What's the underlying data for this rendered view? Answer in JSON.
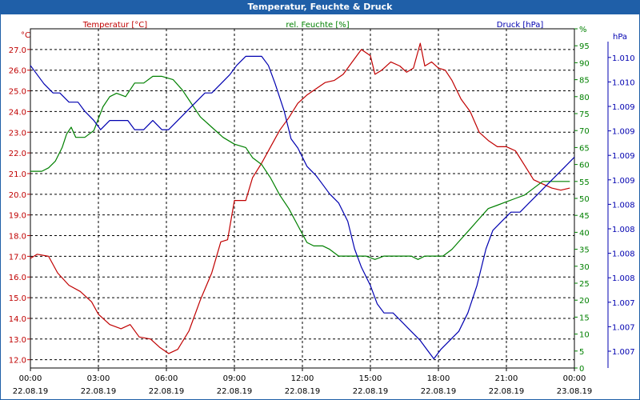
{
  "window": {
    "title": "Temperatur, Feuchte & Druck"
  },
  "colors": {
    "title_bg": "#1f5fa8",
    "temperature": "#c00000",
    "humidity": "#008000",
    "pressure": "#0000b0",
    "grid": "#000000"
  },
  "chart_data": {
    "type": "line",
    "title": "Temperatur, Feuchte & Druck",
    "grid": true,
    "x_axis": {
      "start": "2019-08-22 00:00",
      "end": "2019-08-23 00:00",
      "range_hours": [
        0,
        24
      ],
      "ticks": [
        {
          "h": 0,
          "time": "00:00",
          "date": "22.08.19"
        },
        {
          "h": 3,
          "time": "03:00",
          "date": "22.08.19"
        },
        {
          "h": 6,
          "time": "06:00",
          "date": "22.08.19"
        },
        {
          "h": 9,
          "time": "09:00",
          "date": "22.08.19"
        },
        {
          "h": 12,
          "time": "12:00",
          "date": "22.08.19"
        },
        {
          "h": 15,
          "time": "15:00",
          "date": "22.08.19"
        },
        {
          "h": 18,
          "time": "18:00",
          "date": "22.08.19"
        },
        {
          "h": 21,
          "time": "21:00",
          "date": "22.08.19"
        },
        {
          "h": 24,
          "time": "00:00",
          "date": "23.08.19"
        }
      ]
    },
    "axes": {
      "left": {
        "unit": "°C",
        "range": [
          11.6,
          28.0
        ],
        "ticks": [
          "12.0",
          "13.0",
          "14.0",
          "15.0",
          "16.0",
          "17.0",
          "18.0",
          "19.0",
          "20.0",
          "21.0",
          "22.0",
          "23.0",
          "24.0",
          "25.0",
          "26.0",
          "27.0"
        ]
      },
      "right": {
        "unit": "%",
        "range": [
          0,
          100
        ],
        "ticks": [
          "0",
          "5",
          "10",
          "15",
          "20",
          "25",
          "30",
          "35",
          "40",
          "45",
          "50",
          "55",
          "60",
          "65",
          "70",
          "75",
          "80",
          "85",
          "90",
          "95",
          "%"
        ]
      },
      "pressure": {
        "unit": "hPa",
        "range": [
          1006.8,
          1010.5
        ],
        "ticks": [
          "1.007",
          "1.007",
          "1.007",
          "1.008",
          "1.008",
          "1.008",
          "1.008",
          "1.009",
          "1.009",
          "1.009",
          "1.009",
          "1.010",
          "1.010"
        ]
      }
    },
    "legend": [
      {
        "label": "Temperatur [°C]",
        "series": "temperature"
      },
      {
        "label": "rel. Feuchte [%]",
        "series": "humidity"
      },
      {
        "label": "Druck [hPa]",
        "series": "pressure"
      }
    ],
    "series": [
      {
        "name": "Temperatur [°C]",
        "key": "temperature",
        "axis": "left",
        "points": [
          [
            0,
            16.9
          ],
          [
            0.3,
            17.1
          ],
          [
            0.8,
            17.0
          ],
          [
            1.2,
            16.2
          ],
          [
            1.7,
            15.6
          ],
          [
            2.2,
            15.3
          ],
          [
            2.7,
            14.8
          ],
          [
            3.0,
            14.2
          ],
          [
            3.5,
            13.7
          ],
          [
            4.0,
            13.5
          ],
          [
            4.4,
            13.7
          ],
          [
            4.8,
            13.1
          ],
          [
            5.3,
            13.0
          ],
          [
            5.7,
            12.6
          ],
          [
            6.1,
            12.3
          ],
          [
            6.5,
            12.5
          ],
          [
            7.0,
            13.4
          ],
          [
            7.5,
            14.9
          ],
          [
            8.0,
            16.2
          ],
          [
            8.4,
            17.7
          ],
          [
            8.7,
            17.8
          ],
          [
            9.0,
            19.7
          ],
          [
            9.5,
            19.7
          ],
          [
            9.8,
            20.8
          ],
          [
            10.2,
            21.5
          ],
          [
            10.6,
            22.3
          ],
          [
            11.0,
            23.1
          ],
          [
            11.4,
            23.7
          ],
          [
            11.8,
            24.4
          ],
          [
            12.2,
            24.8
          ],
          [
            12.6,
            25.1
          ],
          [
            13.0,
            25.4
          ],
          [
            13.4,
            25.5
          ],
          [
            13.8,
            25.8
          ],
          [
            14.2,
            26.4
          ],
          [
            14.6,
            27.0
          ],
          [
            15.0,
            26.7
          ],
          [
            15.2,
            25.8
          ],
          [
            15.5,
            26.0
          ],
          [
            15.9,
            26.4
          ],
          [
            16.3,
            26.2
          ],
          [
            16.6,
            25.9
          ],
          [
            16.9,
            26.1
          ],
          [
            17.2,
            27.3
          ],
          [
            17.4,
            26.2
          ],
          [
            17.7,
            26.4
          ],
          [
            18.0,
            26.1
          ],
          [
            18.3,
            26.0
          ],
          [
            18.6,
            25.5
          ],
          [
            19.0,
            24.6
          ],
          [
            19.4,
            24.0
          ],
          [
            19.8,
            23.0
          ],
          [
            20.2,
            22.6
          ],
          [
            20.6,
            22.3
          ],
          [
            21.0,
            22.3
          ],
          [
            21.4,
            22.1
          ],
          [
            21.8,
            21.4
          ],
          [
            22.2,
            20.7
          ],
          [
            22.6,
            20.5
          ],
          [
            23.0,
            20.3
          ],
          [
            23.4,
            20.2
          ],
          [
            23.8,
            20.3
          ]
        ]
      },
      {
        "name": "rel. Feuchte [%]",
        "key": "humidity",
        "axis": "right",
        "points": [
          [
            0,
            58
          ],
          [
            0.5,
            58
          ],
          [
            0.8,
            59
          ],
          [
            1.1,
            61
          ],
          [
            1.4,
            65
          ],
          [
            1.6,
            69
          ],
          [
            1.8,
            71
          ],
          [
            2.0,
            68
          ],
          [
            2.4,
            68
          ],
          [
            2.8,
            70
          ],
          [
            3.2,
            77
          ],
          [
            3.5,
            80
          ],
          [
            3.8,
            81
          ],
          [
            4.2,
            80
          ],
          [
            4.6,
            84
          ],
          [
            5.0,
            84
          ],
          [
            5.4,
            86
          ],
          [
            5.8,
            86
          ],
          [
            6.3,
            85
          ],
          [
            6.7,
            82
          ],
          [
            7.0,
            79
          ],
          [
            7.5,
            74
          ],
          [
            8.0,
            71
          ],
          [
            8.5,
            68
          ],
          [
            9.0,
            66
          ],
          [
            9.5,
            65
          ],
          [
            9.8,
            62
          ],
          [
            10.2,
            60
          ],
          [
            10.6,
            56
          ],
          [
            11.0,
            51
          ],
          [
            11.4,
            47
          ],
          [
            11.8,
            42
          ],
          [
            12.2,
            37
          ],
          [
            12.5,
            36
          ],
          [
            12.9,
            36
          ],
          [
            13.2,
            35
          ],
          [
            13.6,
            33
          ],
          [
            14.0,
            33
          ],
          [
            14.4,
            33
          ],
          [
            14.8,
            33
          ],
          [
            15.2,
            32
          ],
          [
            15.6,
            33
          ],
          [
            16.0,
            33
          ],
          [
            16.4,
            33
          ],
          [
            16.8,
            33
          ],
          [
            17.1,
            32
          ],
          [
            17.4,
            33
          ],
          [
            17.8,
            33
          ],
          [
            18.2,
            33
          ],
          [
            18.6,
            35
          ],
          [
            19.0,
            38
          ],
          [
            19.4,
            41
          ],
          [
            19.8,
            44
          ],
          [
            20.2,
            47
          ],
          [
            20.6,
            48
          ],
          [
            21.0,
            49
          ],
          [
            21.4,
            50
          ],
          [
            21.8,
            51
          ],
          [
            22.2,
            53
          ],
          [
            22.6,
            55
          ],
          [
            23.0,
            55
          ],
          [
            23.4,
            55
          ],
          [
            23.8,
            55
          ]
        ]
      },
      {
        "name": "Druck [hPa]",
        "key": "pressure",
        "axis": "pressure",
        "points": [
          [
            0,
            1010.1
          ],
          [
            0.3,
            1010.0
          ],
          [
            0.6,
            1009.9
          ],
          [
            1.0,
            1009.8
          ],
          [
            1.3,
            1009.8
          ],
          [
            1.7,
            1009.7
          ],
          [
            2.1,
            1009.7
          ],
          [
            2.4,
            1009.6
          ],
          [
            2.8,
            1009.5
          ],
          [
            3.1,
            1009.4
          ],
          [
            3.5,
            1009.5
          ],
          [
            3.9,
            1009.5
          ],
          [
            4.3,
            1009.5
          ],
          [
            4.6,
            1009.4
          ],
          [
            5.0,
            1009.4
          ],
          [
            5.4,
            1009.5
          ],
          [
            5.8,
            1009.4
          ],
          [
            6.1,
            1009.4
          ],
          [
            6.5,
            1009.5
          ],
          [
            6.9,
            1009.6
          ],
          [
            7.3,
            1009.7
          ],
          [
            7.7,
            1009.8
          ],
          [
            8.0,
            1009.8
          ],
          [
            8.4,
            1009.9
          ],
          [
            8.8,
            1010.0
          ],
          [
            9.1,
            1010.1
          ],
          [
            9.5,
            1010.2
          ],
          [
            9.8,
            1010.2
          ],
          [
            10.2,
            1010.2
          ],
          [
            10.5,
            1010.1
          ],
          [
            10.8,
            1009.9
          ],
          [
            11.2,
            1009.6
          ],
          [
            11.5,
            1009.3
          ],
          [
            11.8,
            1009.2
          ],
          [
            12.2,
            1009.0
          ],
          [
            12.6,
            1008.9
          ],
          [
            12.9,
            1008.8
          ],
          [
            13.2,
            1008.7
          ],
          [
            13.6,
            1008.6
          ],
          [
            14.0,
            1008.4
          ],
          [
            14.3,
            1008.1
          ],
          [
            14.6,
            1007.9
          ],
          [
            15.0,
            1007.7
          ],
          [
            15.3,
            1007.5
          ],
          [
            15.6,
            1007.4
          ],
          [
            16.0,
            1007.4
          ],
          [
            16.4,
            1007.3
          ],
          [
            16.8,
            1007.2
          ],
          [
            17.2,
            1007.1
          ],
          [
            17.5,
            1007.0
          ],
          [
            17.8,
            1006.9
          ],
          [
            18.1,
            1007.0
          ],
          [
            18.5,
            1007.1
          ],
          [
            18.9,
            1007.2
          ],
          [
            19.3,
            1007.4
          ],
          [
            19.7,
            1007.7
          ],
          [
            20.1,
            1008.1
          ],
          [
            20.4,
            1008.3
          ],
          [
            20.8,
            1008.4
          ],
          [
            21.2,
            1008.5
          ],
          [
            21.6,
            1008.5
          ],
          [
            22.0,
            1008.6
          ],
          [
            22.4,
            1008.7
          ],
          [
            22.8,
            1008.8
          ],
          [
            23.2,
            1008.9
          ],
          [
            23.6,
            1009.0
          ],
          [
            24.0,
            1009.1
          ]
        ]
      }
    ]
  }
}
